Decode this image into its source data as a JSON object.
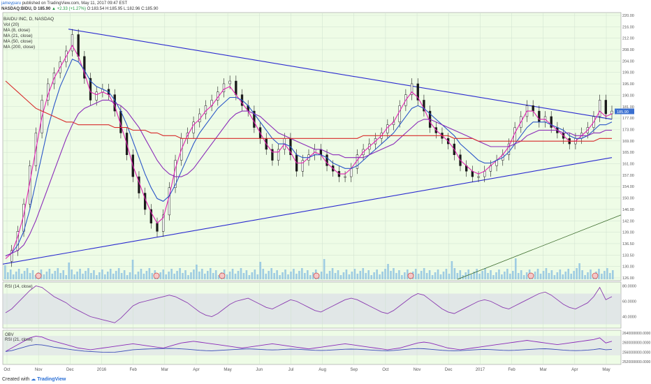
{
  "header": {
    "author": "jameyparu",
    "line1_rest": "published on TradingView.com, May 11, 2017 09:47 EST",
    "line2": "NASDAQ:BIDU, D  185.90",
    "change": "▲ +2.33 (+1.27%)",
    "ohlc": "O:183.54  H:185.95  L:182.96  C:185.90"
  },
  "legend": {
    "title": "BAIDU INC, D, NASDAQ",
    "items": [
      "Vol (20)",
      "MA (8, close)",
      "MA (21, close)",
      "MA (50, close)",
      "MA (200, close)"
    ]
  },
  "price_tag": "185.90",
  "footer": {
    "prefix": "Created with",
    "brand": "TradingView"
  },
  "colors": {
    "panel_bg": "#eefce6",
    "price_line": "#1a1a1a",
    "ma8": "#e020b0",
    "ma21": "#2a55c8",
    "ma50": "#8a2ab8",
    "ma200": "#d82a2a",
    "trend": "#2a2ad0",
    "volume": "#8fc3e0",
    "rsi": "#8a3ab0",
    "obv": "#3a4ab8",
    "tag": "#3a6fd0"
  },
  "chart_data": [
    {
      "type": "line",
      "title": "BAIDU INC, D, NASDAQ",
      "x_ticks": [
        "Oct",
        "Nov",
        "Dec",
        "2016",
        "Feb",
        "Mar",
        "Apr",
        "May",
        "Jun",
        "Jul",
        "Aug",
        "Sep",
        "Oct",
        "Nov",
        "Dec",
        "2017",
        "Feb",
        "Mar",
        "Apr",
        "May"
      ],
      "y_ticks": [
        "220.00",
        "216.00",
        "212.00",
        "208.00",
        "204.00",
        "199.00",
        "195.00",
        "190.00",
        "181.00",
        "177.00",
        "173.00",
        "169.00",
        "165.00",
        "161.00",
        "157.00",
        "154.00",
        "150.00",
        "146.00",
        "142.00",
        "139.00",
        "136.50",
        "133.50",
        "130.00",
        "126.00"
      ],
      "ylim": [
        126,
        220
      ],
      "series": [
        {
          "name": "price",
          "values": [
            131,
            135,
            142,
            152,
            166,
            178,
            190,
            196,
            200,
            204,
            208,
            214,
            206,
            198,
            190,
            193,
            194,
            192,
            186,
            178,
            170,
            162,
            156,
            150,
            145,
            142,
            148,
            158,
            168,
            176,
            178,
            182,
            185,
            188,
            190,
            193,
            196,
            197,
            192,
            188,
            186,
            180,
            176,
            172,
            168,
            172,
            176,
            170,
            164,
            168,
            170,
            172,
            170,
            166,
            164,
            162,
            162,
            165,
            170,
            172,
            174,
            176,
            178,
            181,
            182,
            188,
            192,
            196,
            190,
            186,
            180,
            178,
            176,
            174,
            170,
            166,
            164,
            162,
            162,
            164,
            166,
            168,
            170,
            174,
            180,
            184,
            188,
            186,
            182,
            184,
            180,
            178,
            176,
            174,
            176,
            178,
            180,
            184,
            190,
            185,
            186
          ]
        },
        {
          "name": "MA (8, close)",
          "values": [
            132,
            134,
            140,
            148,
            160,
            172,
            184,
            192,
            198,
            202,
            206,
            210,
            206,
            200,
            193,
            192,
            193,
            192,
            188,
            181,
            174,
            166,
            160,
            154,
            149,
            145,
            147,
            155,
            165,
            172,
            177,
            181,
            183,
            186,
            188,
            191,
            194,
            195,
            192,
            189,
            186,
            182,
            178,
            174,
            171,
            171,
            174,
            171,
            167,
            167,
            169,
            171,
            170,
            167,
            165,
            163,
            163,
            165,
            168,
            171,
            173,
            175,
            177,
            180,
            182,
            186,
            190,
            193,
            191,
            187,
            182,
            179,
            177,
            175,
            172,
            168,
            166,
            164,
            163,
            164,
            166,
            168,
            170,
            173,
            178,
            182,
            186,
            186,
            183,
            183,
            181,
            179,
            177,
            175,
            175,
            177,
            179,
            182,
            186,
            184,
            185
          ]
        },
        {
          "name": "MA (21, close)",
          "values": [
            133,
            134,
            137,
            142,
            150,
            160,
            170,
            180,
            188,
            195,
            200,
            205,
            204,
            201,
            197,
            195,
            194,
            193,
            190,
            186,
            181,
            175,
            169,
            163,
            158,
            154,
            153,
            155,
            159,
            164,
            169,
            174,
            178,
            181,
            184,
            187,
            189,
            191,
            191,
            190,
            188,
            185,
            182,
            179,
            176,
            174,
            174,
            173,
            170,
            169,
            169,
            170,
            170,
            169,
            167,
            166,
            165,
            165,
            166,
            168,
            170,
            172,
            174,
            176,
            178,
            181,
            184,
            187,
            188,
            187,
            185,
            183,
            181,
            179,
            177,
            174,
            172,
            170,
            168,
            167,
            167,
            168,
            169,
            171,
            174,
            177,
            180,
            182,
            182,
            182,
            181,
            180,
            179,
            177,
            176,
            176,
            177,
            179,
            181,
            181,
            182
          ]
        },
        {
          "name": "MA (50, close)",
          "values": [
            133,
            134,
            135,
            137,
            141,
            146,
            152,
            158,
            164,
            170,
            176,
            181,
            185,
            187,
            188,
            189,
            190,
            190,
            189,
            188,
            186,
            183,
            180,
            176,
            172,
            168,
            165,
            163,
            162,
            162,
            163,
            165,
            168,
            171,
            174,
            177,
            180,
            183,
            185,
            186,
            186,
            185,
            184,
            182,
            180,
            178,
            177,
            176,
            175,
            174,
            173,
            172,
            172,
            171,
            170,
            170,
            169,
            169,
            169,
            169,
            170,
            171,
            172,
            173,
            174,
            176,
            178,
            180,
            182,
            183,
            183,
            182,
            181,
            180,
            179,
            178,
            177,
            176,
            175,
            174,
            173,
            173,
            173,
            173,
            174,
            175,
            177,
            178,
            179,
            179,
            179,
            179,
            178,
            178,
            177,
            177,
            177,
            178,
            178,
            179,
            179
          ]
        },
        {
          "name": "MA (200, close)",
          "values": [
            197,
            195,
            193,
            191,
            189,
            187,
            186,
            185,
            184,
            183,
            182,
            182,
            181,
            181,
            181,
            181,
            181,
            181,
            180,
            180,
            180,
            179,
            179,
            179,
            178,
            178,
            177,
            177,
            177,
            176,
            176,
            176,
            176,
            176,
            176,
            176,
            176,
            176,
            176,
            176,
            176,
            176,
            176,
            176,
            176,
            176,
            176,
            176,
            176,
            176,
            176,
            176,
            176,
            176,
            176,
            176,
            176,
            176,
            176,
            177,
            177,
            177,
            177,
            177,
            177,
            177,
            177,
            177,
            177,
            177,
            177,
            177,
            177,
            177,
            176,
            176,
            176,
            176,
            175,
            175,
            175,
            175,
            175,
            175,
            175,
            175,
            175,
            175,
            175,
            175,
            175,
            175,
            175,
            175,
            175,
            175,
            175,
            175,
            176,
            176,
            176
          ]
        }
      ]
    },
    {
      "type": "line",
      "title": "RSI (14, close)",
      "y_ticks": [
        "80.0000",
        "60.0000",
        "40.0000"
      ],
      "ylim": [
        25,
        85
      ],
      "series": [
        {
          "name": "RSI (14, close)",
          "values": [
            45,
            50,
            58,
            66,
            74,
            80,
            78,
            72,
            66,
            62,
            58,
            52,
            48,
            44,
            40,
            38,
            36,
            34,
            32,
            38,
            46,
            54,
            58,
            60,
            62,
            64,
            66,
            68,
            66,
            62,
            58,
            52,
            46,
            42,
            40,
            44,
            50,
            56,
            60,
            62,
            64,
            60,
            56,
            52,
            50,
            54,
            58,
            62,
            60,
            56,
            52,
            48,
            46,
            50,
            54,
            58,
            62,
            64,
            62,
            58,
            54,
            50,
            46,
            44,
            48,
            54,
            60,
            66,
            70,
            68,
            62,
            56,
            50,
            46,
            44,
            48,
            52,
            56,
            60,
            62,
            60,
            56,
            52,
            50,
            54,
            58,
            62,
            66,
            70,
            72,
            68,
            62,
            56,
            52,
            50,
            54,
            58,
            66,
            78,
            62,
            66
          ]
        }
      ]
    },
    {
      "type": "line",
      "title": "OBV",
      "y_ticks": [
        "2640000000.0000",
        "2600000000.0000",
        "2560000000.0000",
        "2520000000.0000"
      ],
      "ylim": [
        2500000000,
        2660000000
      ],
      "series": [
        {
          "name": "OBV",
          "values": [
            2560,
            2580,
            2600,
            2620,
            2640,
            2650,
            2645,
            2630,
            2620,
            2610,
            2600,
            2590,
            2580,
            2575,
            2570,
            2575,
            2580,
            2585,
            2590,
            2595,
            2600,
            2605,
            2600,
            2595,
            2590,
            2585,
            2580,
            2590,
            2600,
            2610,
            2615,
            2620,
            2615,
            2610,
            2605,
            2600,
            2595,
            2590,
            2585,
            2580,
            2585,
            2590,
            2595,
            2600,
            2605,
            2600,
            2595,
            2590,
            2585,
            2580,
            2575,
            2580,
            2585,
            2590,
            2595,
            2600,
            2605,
            2600,
            2595,
            2590,
            2585,
            2580,
            2575,
            2570,
            2575,
            2580,
            2590,
            2600,
            2610,
            2615,
            2610,
            2600,
            2590,
            2580,
            2575,
            2570,
            2575,
            2580,
            2585,
            2590,
            2595,
            2600,
            2605,
            2610,
            2615,
            2620,
            2625,
            2620,
            2615,
            2610,
            2605,
            2600,
            2605,
            2610,
            2615,
            2620,
            2625,
            2630,
            2640,
            2610,
            2620
          ]
        },
        {
          "name": "RSI (21, close)",
          "values": [
            2560,
            2565,
            2575,
            2585,
            2595,
            2600,
            2598,
            2592,
            2585,
            2580,
            2575,
            2570,
            2566,
            2562,
            2560,
            2558,
            2556,
            2555,
            2556,
            2560,
            2565,
            2570,
            2572,
            2574,
            2575,
            2576,
            2577,
            2578,
            2577,
            2575,
            2573,
            2570,
            2567,
            2565,
            2564,
            2566,
            2568,
            2570,
            2572,
            2574,
            2575,
            2574,
            2572,
            2570,
            2569,
            2570,
            2572,
            2574,
            2573,
            2571,
            2569,
            2567,
            2566,
            2567,
            2569,
            2571,
            2573,
            2574,
            2573,
            2571,
            2569,
            2567,
            2565,
            2564,
            2566,
            2569,
            2572,
            2575,
            2577,
            2576,
            2573,
            2570,
            2567,
            2565,
            2564,
            2565,
            2567,
            2569,
            2571,
            2572,
            2571,
            2569,
            2567,
            2566,
            2567,
            2569,
            2571,
            2573,
            2575,
            2576,
            2574,
            2571,
            2568,
            2566,
            2565,
            2566,
            2568,
            2571,
            2576,
            2570,
            2572
          ]
        }
      ]
    }
  ]
}
